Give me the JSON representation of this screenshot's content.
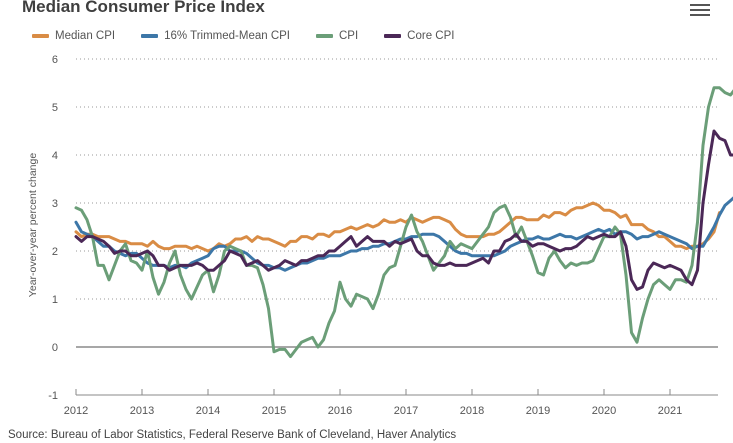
{
  "header": {
    "title": "Median Consumer Price Index",
    "menu_icon": "hamburger-menu-icon"
  },
  "source_text": "Source: Bureau of Labor Statistics, Federal Reserve Bank of Cleveland, Haver Analytics",
  "chart_data": {
    "type": "line",
    "title": "Median Consumer Price Index",
    "xlabel": "",
    "ylabel": "Year-over-year percent change",
    "ylim": [
      -1,
      6
    ],
    "yticks": [
      -1,
      0,
      1,
      2,
      3,
      4,
      5,
      6
    ],
    "xticks": [
      "2012",
      "2013",
      "2014",
      "2015",
      "2016",
      "2017",
      "2018",
      "2019",
      "2020",
      "2021"
    ],
    "x_start": "2012-01",
    "x_frequency": "monthly",
    "grid": "horizontal dotted",
    "zero_line": true,
    "legend_position": "top-left",
    "series": [
      {
        "name": "Median CPI",
        "color": "#d98c45",
        "values": [
          2.4,
          2.3,
          2.35,
          2.35,
          2.3,
          2.3,
          2.3,
          2.25,
          2.2,
          2.2,
          2.15,
          2.15,
          2.15,
          2.1,
          2.2,
          2.1,
          2.05,
          2.05,
          2.1,
          2.1,
          2.1,
          2.05,
          2.1,
          2.05,
          2.0,
          2.05,
          2.15,
          2.1,
          2.15,
          2.25,
          2.25,
          2.3,
          2.2,
          2.3,
          2.25,
          2.25,
          2.2,
          2.15,
          2.1,
          2.2,
          2.2,
          2.3,
          2.3,
          2.25,
          2.35,
          2.35,
          2.3,
          2.4,
          2.4,
          2.45,
          2.5,
          2.45,
          2.5,
          2.55,
          2.5,
          2.55,
          2.65,
          2.6,
          2.6,
          2.65,
          2.6,
          2.7,
          2.65,
          2.6,
          2.65,
          2.7,
          2.7,
          2.65,
          2.6,
          2.45,
          2.35,
          2.3,
          2.3,
          2.3,
          2.3,
          2.35,
          2.35,
          2.4,
          2.5,
          2.6,
          2.7,
          2.7,
          2.65,
          2.65,
          2.65,
          2.75,
          2.7,
          2.8,
          2.8,
          2.75,
          2.85,
          2.9,
          2.9,
          2.95,
          3.0,
          2.95,
          2.85,
          2.85,
          2.8,
          2.7,
          2.75,
          2.55,
          2.55,
          2.55,
          2.45,
          2.4,
          2.3,
          2.3,
          2.2,
          2.1,
          2.1,
          2.05,
          2.1,
          2.1,
          2.15,
          2.25,
          2.4,
          2.8
        ]
      },
      {
        "name": "16% Trimmed-Mean CPI",
        "color": "#3d77a8",
        "values": [
          2.6,
          2.4,
          2.35,
          2.3,
          2.2,
          2.1,
          2.1,
          2.0,
          1.95,
          1.9,
          1.95,
          1.95,
          1.85,
          1.75,
          1.7,
          1.7,
          1.7,
          1.65,
          1.7,
          1.7,
          1.65,
          1.75,
          1.8,
          1.85,
          1.9,
          2.05,
          2.1,
          2.1,
          2.0,
          2.0,
          2.0,
          1.95,
          1.85,
          1.75,
          1.7,
          1.7,
          1.65,
          1.65,
          1.6,
          1.65,
          1.7,
          1.75,
          1.75,
          1.8,
          1.85,
          1.85,
          1.9,
          1.9,
          1.9,
          1.95,
          2.0,
          2.0,
          2.05,
          2.05,
          2.1,
          2.1,
          2.15,
          2.15,
          2.2,
          2.25,
          2.25,
          2.3,
          2.3,
          2.35,
          2.35,
          2.35,
          2.3,
          2.2,
          2.1,
          2.0,
          1.95,
          1.95,
          1.9,
          1.9,
          1.9,
          1.9,
          1.9,
          1.95,
          2.0,
          2.1,
          2.15,
          2.2,
          2.25,
          2.25,
          2.3,
          2.25,
          2.25,
          2.3,
          2.35,
          2.3,
          2.3,
          2.25,
          2.3,
          2.35,
          2.4,
          2.45,
          2.4,
          2.45,
          2.35,
          2.4,
          2.4,
          2.35,
          2.25,
          2.3,
          2.3,
          2.35,
          2.4,
          2.35,
          2.3,
          2.25,
          2.2,
          2.15,
          2.05,
          2.1,
          2.1,
          2.3,
          2.5,
          2.75,
          2.95,
          3.05,
          3.15,
          3.55
        ]
      },
      {
        "name": "CPI",
        "color": "#6b9e78",
        "values": [
          2.9,
          2.85,
          2.65,
          2.3,
          1.7,
          1.7,
          1.4,
          1.7,
          2.0,
          2.15,
          1.8,
          1.75,
          1.6,
          2.0,
          1.45,
          1.1,
          1.35,
          1.75,
          2.0,
          1.5,
          1.2,
          1.0,
          1.25,
          1.5,
          1.6,
          1.15,
          1.5,
          2.0,
          2.1,
          2.05,
          2.0,
          1.7,
          1.7,
          1.65,
          1.3,
          0.8,
          -0.1,
          -0.05,
          -0.05,
          -0.2,
          -0.05,
          0.1,
          0.15,
          0.2,
          0.0,
          0.15,
          0.5,
          0.75,
          1.35,
          1.0,
          0.85,
          1.1,
          1.05,
          1.0,
          0.8,
          1.1,
          1.5,
          1.65,
          1.7,
          2.1,
          2.5,
          2.75,
          2.4,
          2.2,
          1.9,
          1.6,
          1.75,
          1.9,
          2.2,
          2.05,
          2.15,
          2.1,
          2.05,
          2.2,
          2.35,
          2.5,
          2.8,
          2.9,
          2.95,
          2.7,
          2.3,
          2.5,
          2.2,
          1.9,
          1.55,
          1.5,
          1.85,
          2.0,
          1.8,
          1.65,
          1.75,
          1.7,
          1.75,
          1.75,
          1.8,
          2.05,
          2.3,
          2.3,
          2.5,
          2.35,
          1.5,
          0.3,
          0.1,
          0.6,
          1.0,
          1.3,
          1.4,
          1.3,
          1.2,
          1.4,
          1.4,
          1.35,
          1.7,
          2.6,
          4.2,
          5.0,
          5.4,
          5.4,
          5.3,
          5.25,
          5.4
        ]
      },
      {
        "name": "Core CPI",
        "color": "#4b2857",
        "values": [
          2.3,
          2.2,
          2.3,
          2.3,
          2.25,
          2.2,
          2.1,
          1.95,
          2.0,
          2.0,
          1.9,
          1.9,
          1.95,
          2.0,
          1.9,
          1.7,
          1.7,
          1.6,
          1.65,
          1.7,
          1.7,
          1.7,
          1.75,
          1.7,
          1.6,
          1.6,
          1.7,
          1.8,
          2.0,
          1.95,
          1.9,
          1.7,
          1.75,
          1.8,
          1.7,
          1.6,
          1.65,
          1.7,
          1.8,
          1.75,
          1.7,
          1.8,
          1.8,
          1.85,
          1.9,
          1.9,
          2.0,
          2.0,
          2.1,
          2.2,
          2.3,
          2.1,
          2.2,
          2.3,
          2.2,
          2.2,
          2.2,
          2.1,
          2.2,
          2.15,
          2.2,
          2.25,
          2.0,
          1.9,
          1.9,
          1.75,
          1.7,
          1.7,
          1.75,
          1.7,
          1.7,
          1.7,
          1.75,
          1.8,
          1.85,
          1.75,
          2.0,
          2.0,
          2.2,
          2.25,
          2.35,
          2.2,
          2.2,
          2.1,
          2.15,
          2.15,
          2.1,
          2.05,
          2.0,
          2.05,
          2.05,
          2.1,
          2.2,
          2.3,
          2.25,
          2.3,
          2.35,
          2.3,
          2.3,
          2.4,
          2.1,
          1.4,
          1.2,
          1.25,
          1.6,
          1.75,
          1.7,
          1.65,
          1.7,
          1.65,
          1.6,
          1.4,
          1.3,
          1.6,
          3.0,
          3.8,
          4.5,
          4.35,
          4.3,
          4.0,
          4.0
        ]
      }
    ]
  }
}
